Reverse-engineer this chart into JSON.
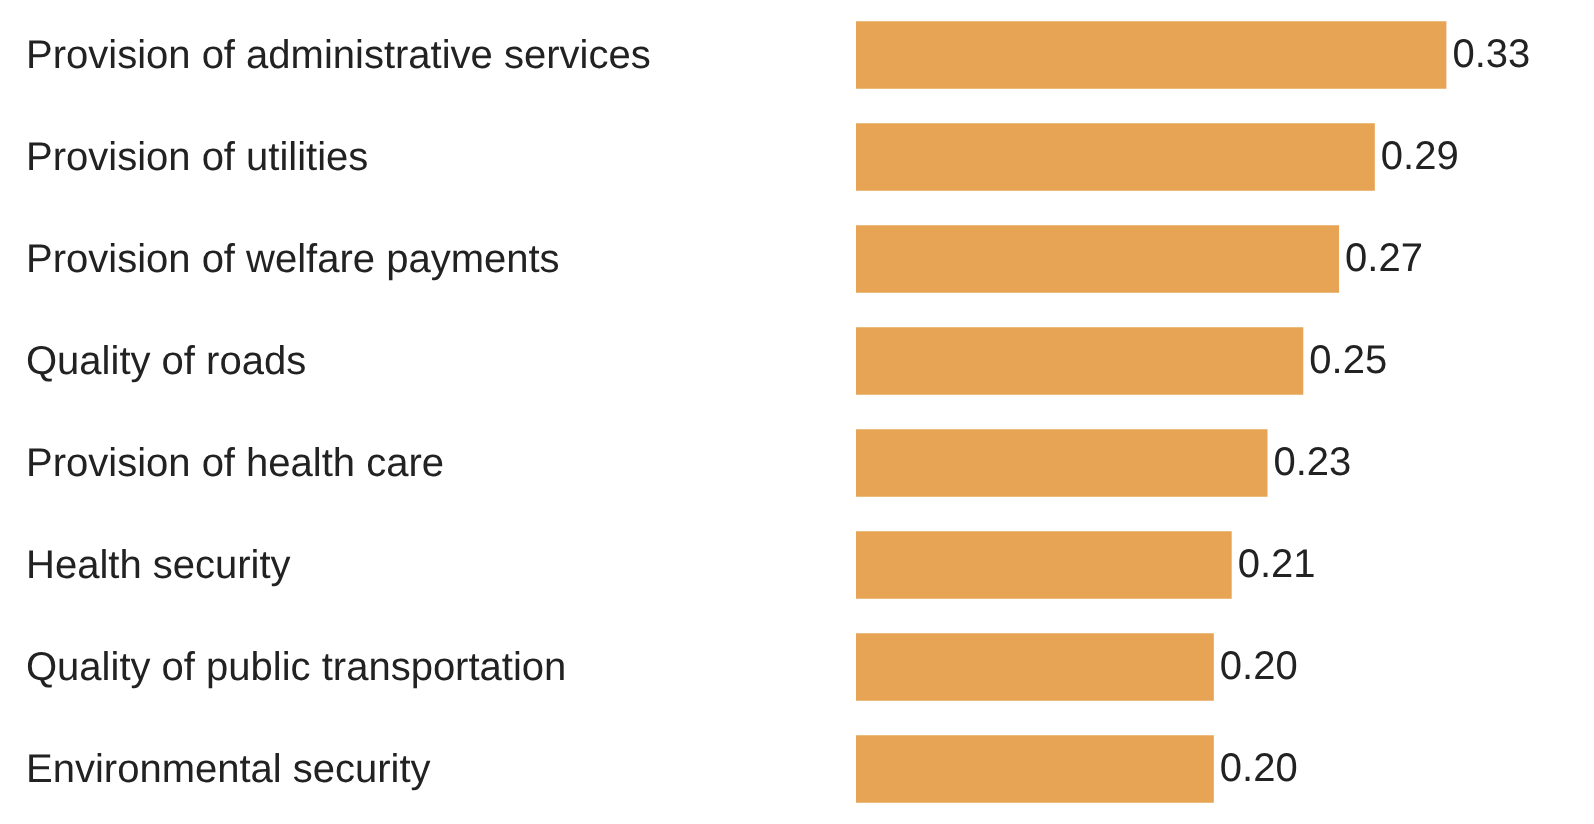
{
  "chart_data": {
    "type": "bar",
    "orientation": "horizontal",
    "categories": [
      "Provision of administrative services",
      "Provision of utilities",
      "Provision of welfare payments",
      "Quality of roads",
      "Provision of health care",
      "Health security",
      "Quality of public transportation",
      "Environmental security"
    ],
    "values": [
      0.33,
      0.29,
      0.27,
      0.25,
      0.23,
      0.21,
      0.2,
      0.2
    ],
    "value_labels": [
      "0.33",
      "0.29",
      "0.27",
      "0.25",
      "0.23",
      "0.21",
      "0.20",
      "0.20"
    ],
    "color": "#e8a455"
  }
}
